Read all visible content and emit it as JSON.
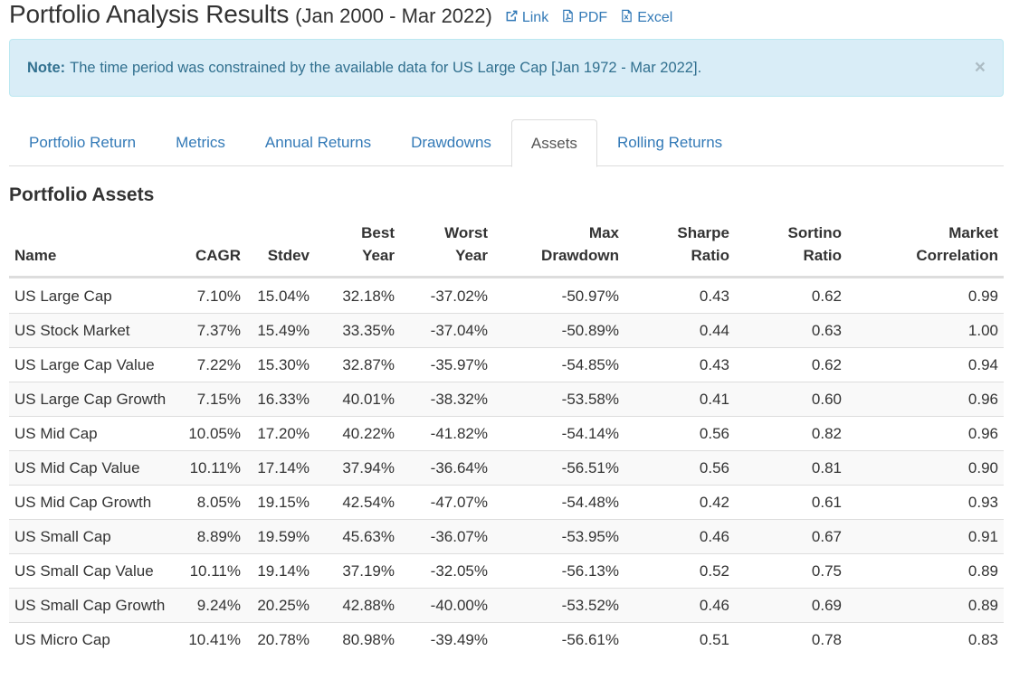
{
  "header": {
    "title": "Portfolio Analysis Results",
    "period": "(Jan 2000 - Mar 2022)",
    "links": {
      "link_label": "Link",
      "pdf_label": "PDF",
      "excel_label": "Excel",
      "link_icon": "external-link-icon",
      "pdf_icon": "pdf-file-icon",
      "excel_icon": "excel-file-icon"
    }
  },
  "alert": {
    "label": "Note:",
    "text": "The time period was constrained by the available data for US Large Cap [Jan 1972 - Mar 2022].",
    "close": "×"
  },
  "tabs": [
    {
      "label": "Portfolio Return"
    },
    {
      "label": "Metrics"
    },
    {
      "label": "Annual Returns"
    },
    {
      "label": "Drawdowns"
    },
    {
      "label": "Assets",
      "active": true
    },
    {
      "label": "Rolling Returns"
    }
  ],
  "section": {
    "title": "Portfolio Assets"
  },
  "table": {
    "headers": {
      "name": "Name",
      "cagr": "CAGR",
      "stdev": "Stdev",
      "best_year_1": "Best",
      "best_year_2": "Year",
      "worst_year_1": "Worst",
      "worst_year_2": "Year",
      "max_drawdown_1": "Max",
      "max_drawdown_2": "Drawdown",
      "sharpe_1": "Sharpe",
      "sharpe_2": "Ratio",
      "sortino_1": "Sortino",
      "sortino_2": "Ratio",
      "market_corr_1": "Market",
      "market_corr_2": "Correlation"
    },
    "rows": [
      {
        "name": "US Large Cap",
        "cagr": "7.10%",
        "stdev": "15.04%",
        "best_year": "32.18%",
        "worst_year": "-37.02%",
        "max_drawdown": "-50.97%",
        "sharpe": "0.43",
        "sortino": "0.62",
        "market_corr": "0.99"
      },
      {
        "name": "US Stock Market",
        "cagr": "7.37%",
        "stdev": "15.49%",
        "best_year": "33.35%",
        "worst_year": "-37.04%",
        "max_drawdown": "-50.89%",
        "sharpe": "0.44",
        "sortino": "0.63",
        "market_corr": "1.00"
      },
      {
        "name": "US Large Cap Value",
        "cagr": "7.22%",
        "stdev": "15.30%",
        "best_year": "32.87%",
        "worst_year": "-35.97%",
        "max_drawdown": "-54.85%",
        "sharpe": "0.43",
        "sortino": "0.62",
        "market_corr": "0.94"
      },
      {
        "name": "US Large Cap Growth",
        "cagr": "7.15%",
        "stdev": "16.33%",
        "best_year": "40.01%",
        "worst_year": "-38.32%",
        "max_drawdown": "-53.58%",
        "sharpe": "0.41",
        "sortino": "0.60",
        "market_corr": "0.96"
      },
      {
        "name": "US Mid Cap",
        "cagr": "10.05%",
        "stdev": "17.20%",
        "best_year": "40.22%",
        "worst_year": "-41.82%",
        "max_drawdown": "-54.14%",
        "sharpe": "0.56",
        "sortino": "0.82",
        "market_corr": "0.96"
      },
      {
        "name": "US Mid Cap Value",
        "cagr": "10.11%",
        "stdev": "17.14%",
        "best_year": "37.94%",
        "worst_year": "-36.64%",
        "max_drawdown": "-56.51%",
        "sharpe": "0.56",
        "sortino": "0.81",
        "market_corr": "0.90"
      },
      {
        "name": "US Mid Cap Growth",
        "cagr": "8.05%",
        "stdev": "19.15%",
        "best_year": "42.54%",
        "worst_year": "-47.07%",
        "max_drawdown": "-54.48%",
        "sharpe": "0.42",
        "sortino": "0.61",
        "market_corr": "0.93"
      },
      {
        "name": "US Small Cap",
        "cagr": "8.89%",
        "stdev": "19.59%",
        "best_year": "45.63%",
        "worst_year": "-36.07%",
        "max_drawdown": "-53.95%",
        "sharpe": "0.46",
        "sortino": "0.67",
        "market_corr": "0.91"
      },
      {
        "name": "US Small Cap Value",
        "cagr": "10.11%",
        "stdev": "19.14%",
        "best_year": "37.19%",
        "worst_year": "-32.05%",
        "max_drawdown": "-56.13%",
        "sharpe": "0.52",
        "sortino": "0.75",
        "market_corr": "0.89"
      },
      {
        "name": "US Small Cap Growth",
        "cagr": "9.24%",
        "stdev": "20.25%",
        "best_year": "42.88%",
        "worst_year": "-40.00%",
        "max_drawdown": "-53.52%",
        "sharpe": "0.46",
        "sortino": "0.69",
        "market_corr": "0.89"
      },
      {
        "name": "US Micro Cap",
        "cagr": "10.41%",
        "stdev": "20.78%",
        "best_year": "80.98%",
        "worst_year": "-39.49%",
        "max_drawdown": "-56.61%",
        "sharpe": "0.51",
        "sortino": "0.78",
        "market_corr": "0.83"
      }
    ]
  },
  "colors": {
    "link": "#337ab7",
    "alert_bg": "#d9edf7",
    "alert_border": "#bce8f1",
    "alert_text": "#31708f",
    "stripe": "#f9f9f9",
    "border": "#dddddd"
  }
}
